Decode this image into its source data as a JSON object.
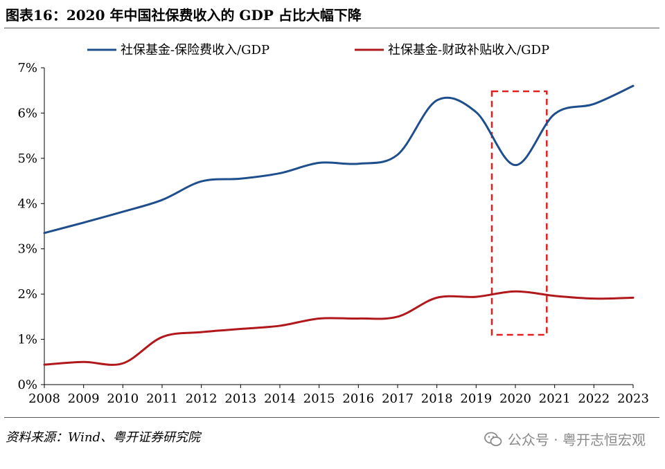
{
  "title": "图表16：2020 年中国社保费收入的 GDP 占比大幅下降",
  "source": "资料来源：Wind、粤开证券研究院",
  "watermark": "公众号 · 粤开志恒宏观",
  "watermark_icon": "wechat-icon",
  "chart_data": {
    "type": "line",
    "title": "",
    "xlabel": "",
    "ylabel": "",
    "x": [
      2008,
      2009,
      2010,
      2011,
      2012,
      2013,
      2014,
      2015,
      2016,
      2017,
      2018,
      2019,
      2020,
      2021,
      2022,
      2023
    ],
    "ylim": [
      0,
      7
    ],
    "yticks": [
      0,
      1,
      2,
      3,
      4,
      5,
      6,
      7
    ],
    "ytick_labels": [
      "0%",
      "1%",
      "2%",
      "3%",
      "4%",
      "5%",
      "6%",
      "7%"
    ],
    "grid": false,
    "legend_position": "top",
    "series": [
      {
        "name": "社保基金-保险费收入/GDP",
        "color": "#1f4e8c",
        "values": [
          3.35,
          3.58,
          3.82,
          4.08,
          4.49,
          4.55,
          4.67,
          4.9,
          4.88,
          5.08,
          6.28,
          6.02,
          4.85,
          5.98,
          6.2,
          6.6
        ]
      },
      {
        "name": "社保基金-财政补贴收入/GDP",
        "color": "#b0181b",
        "values": [
          0.44,
          0.5,
          0.47,
          1.05,
          1.16,
          1.23,
          1.3,
          1.46,
          1.46,
          1.5,
          1.92,
          1.94,
          2.06,
          1.96,
          1.9,
          1.92
        ]
      }
    ],
    "annotation": {
      "type": "dashed-box",
      "color": "#e41e1e",
      "x_range": [
        2019.4,
        2020.8
      ],
      "y_range": [
        1.1,
        6.48
      ]
    }
  }
}
